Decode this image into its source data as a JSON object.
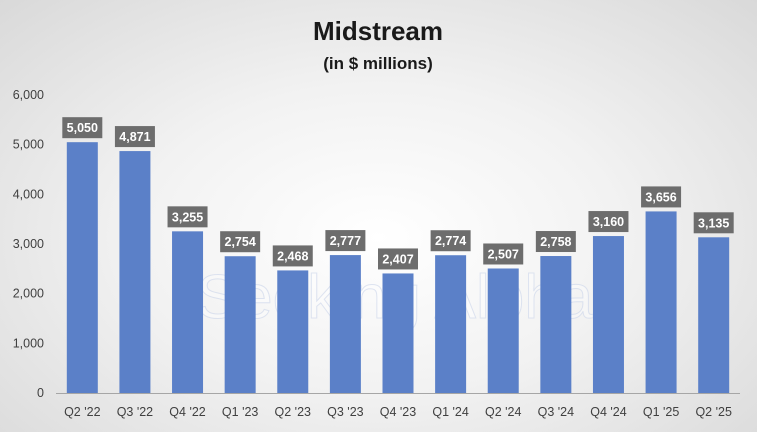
{
  "watermark": "Seeking Alpha",
  "chart_data": {
    "type": "bar",
    "title": "Midstream",
    "subtitle": "(in $ millions)",
    "xlabel": "",
    "ylabel": "",
    "categories": [
      "Q2 '22",
      "Q3 '22",
      "Q4 '22",
      "Q1 '23",
      "Q2 '23",
      "Q3 '23",
      "Q4 '23",
      "Q1 '24",
      "Q2 '24",
      "Q3 '24",
      "Q4 '24",
      "Q1 '25",
      "Q2 '25"
    ],
    "values": [
      5050,
      4871,
      3255,
      2754,
      2468,
      2777,
      2407,
      2774,
      2507,
      2758,
      3160,
      3656,
      3135
    ],
    "data_labels": [
      "5,050",
      "4,871",
      "3,255",
      "2,754",
      "2,468",
      "2,777",
      "2,407",
      "2,774",
      "2,507",
      "2,758",
      "3,160",
      "3,656",
      "3,135"
    ],
    "y_ticks": [
      0,
      1000,
      2000,
      3000,
      4000,
      5000,
      6000
    ],
    "y_tick_labels": [
      "0",
      "1,000",
      "2,000",
      "3,000",
      "4,000",
      "5,000",
      "6,000"
    ],
    "ylim": [
      0,
      6000
    ],
    "grid": false,
    "legend": "none",
    "colors": {
      "bar": "#5b80c8",
      "label_bg": "#6d6d6d",
      "label_text": "#ffffff",
      "axis": "#a6a6a6",
      "text": "#404040"
    }
  }
}
